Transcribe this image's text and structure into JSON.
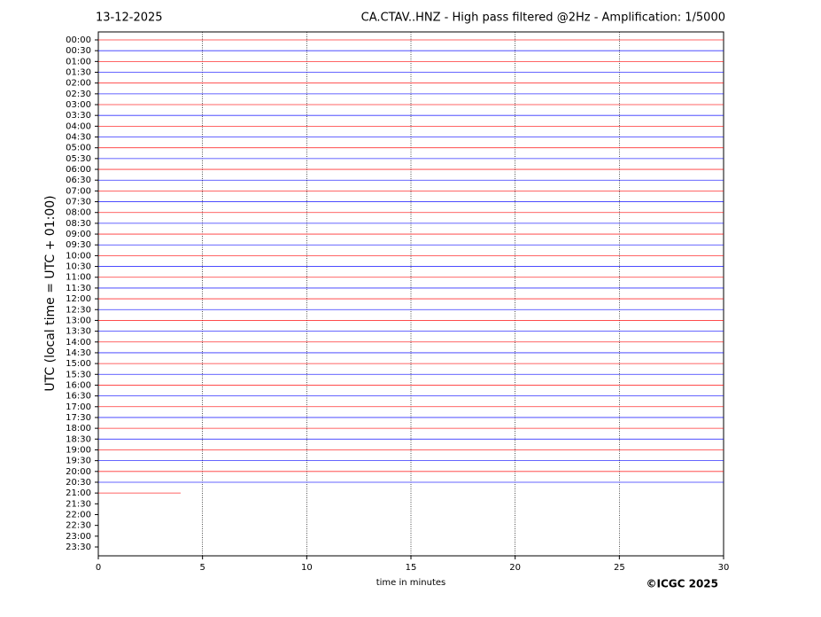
{
  "header": {
    "date": "13-12-2025",
    "title": "CA.CTAV..HNZ - High pass filtered @2Hz - Amplification: 1/5000"
  },
  "footer": "©ICGC 2025",
  "chart_data": {
    "type": "line",
    "xlabel": "time in minutes",
    "ylabel": "UTC (local time = UTC + 01:00)",
    "xlim": [
      0,
      30
    ],
    "xticks": [
      0,
      5,
      10,
      15,
      20,
      25,
      30
    ],
    "grid": true,
    "colors": [
      "#ff0000",
      "#0000ff"
    ],
    "categories": [
      "00:00",
      "00:30",
      "01:00",
      "01:30",
      "02:00",
      "02:30",
      "03:00",
      "03:30",
      "04:00",
      "04:30",
      "05:00",
      "05:30",
      "06:00",
      "06:30",
      "07:00",
      "07:30",
      "08:00",
      "08:30",
      "09:00",
      "09:30",
      "10:00",
      "10:30",
      "11:00",
      "11:30",
      "12:00",
      "12:30",
      "13:00",
      "13:30",
      "14:00",
      "14:30",
      "15:00",
      "15:30",
      "16:00",
      "16:30",
      "17:00",
      "17:30",
      "18:00",
      "18:30",
      "19:00",
      "19:30",
      "20:00",
      "20:30",
      "21:00",
      "21:30",
      "22:00",
      "22:30",
      "23:00",
      "23:30"
    ],
    "values": [
      30,
      30,
      30,
      30,
      30,
      30,
      30,
      30,
      30,
      30,
      30,
      30,
      30,
      30,
      30,
      30,
      30,
      30,
      30,
      30,
      30,
      30,
      30,
      30,
      30,
      30,
      30,
      30,
      30,
      30,
      30,
      30,
      30,
      30,
      30,
      30,
      30,
      30,
      30,
      30,
      30,
      30,
      3.95,
      null,
      null,
      null,
      null,
      null
    ]
  }
}
